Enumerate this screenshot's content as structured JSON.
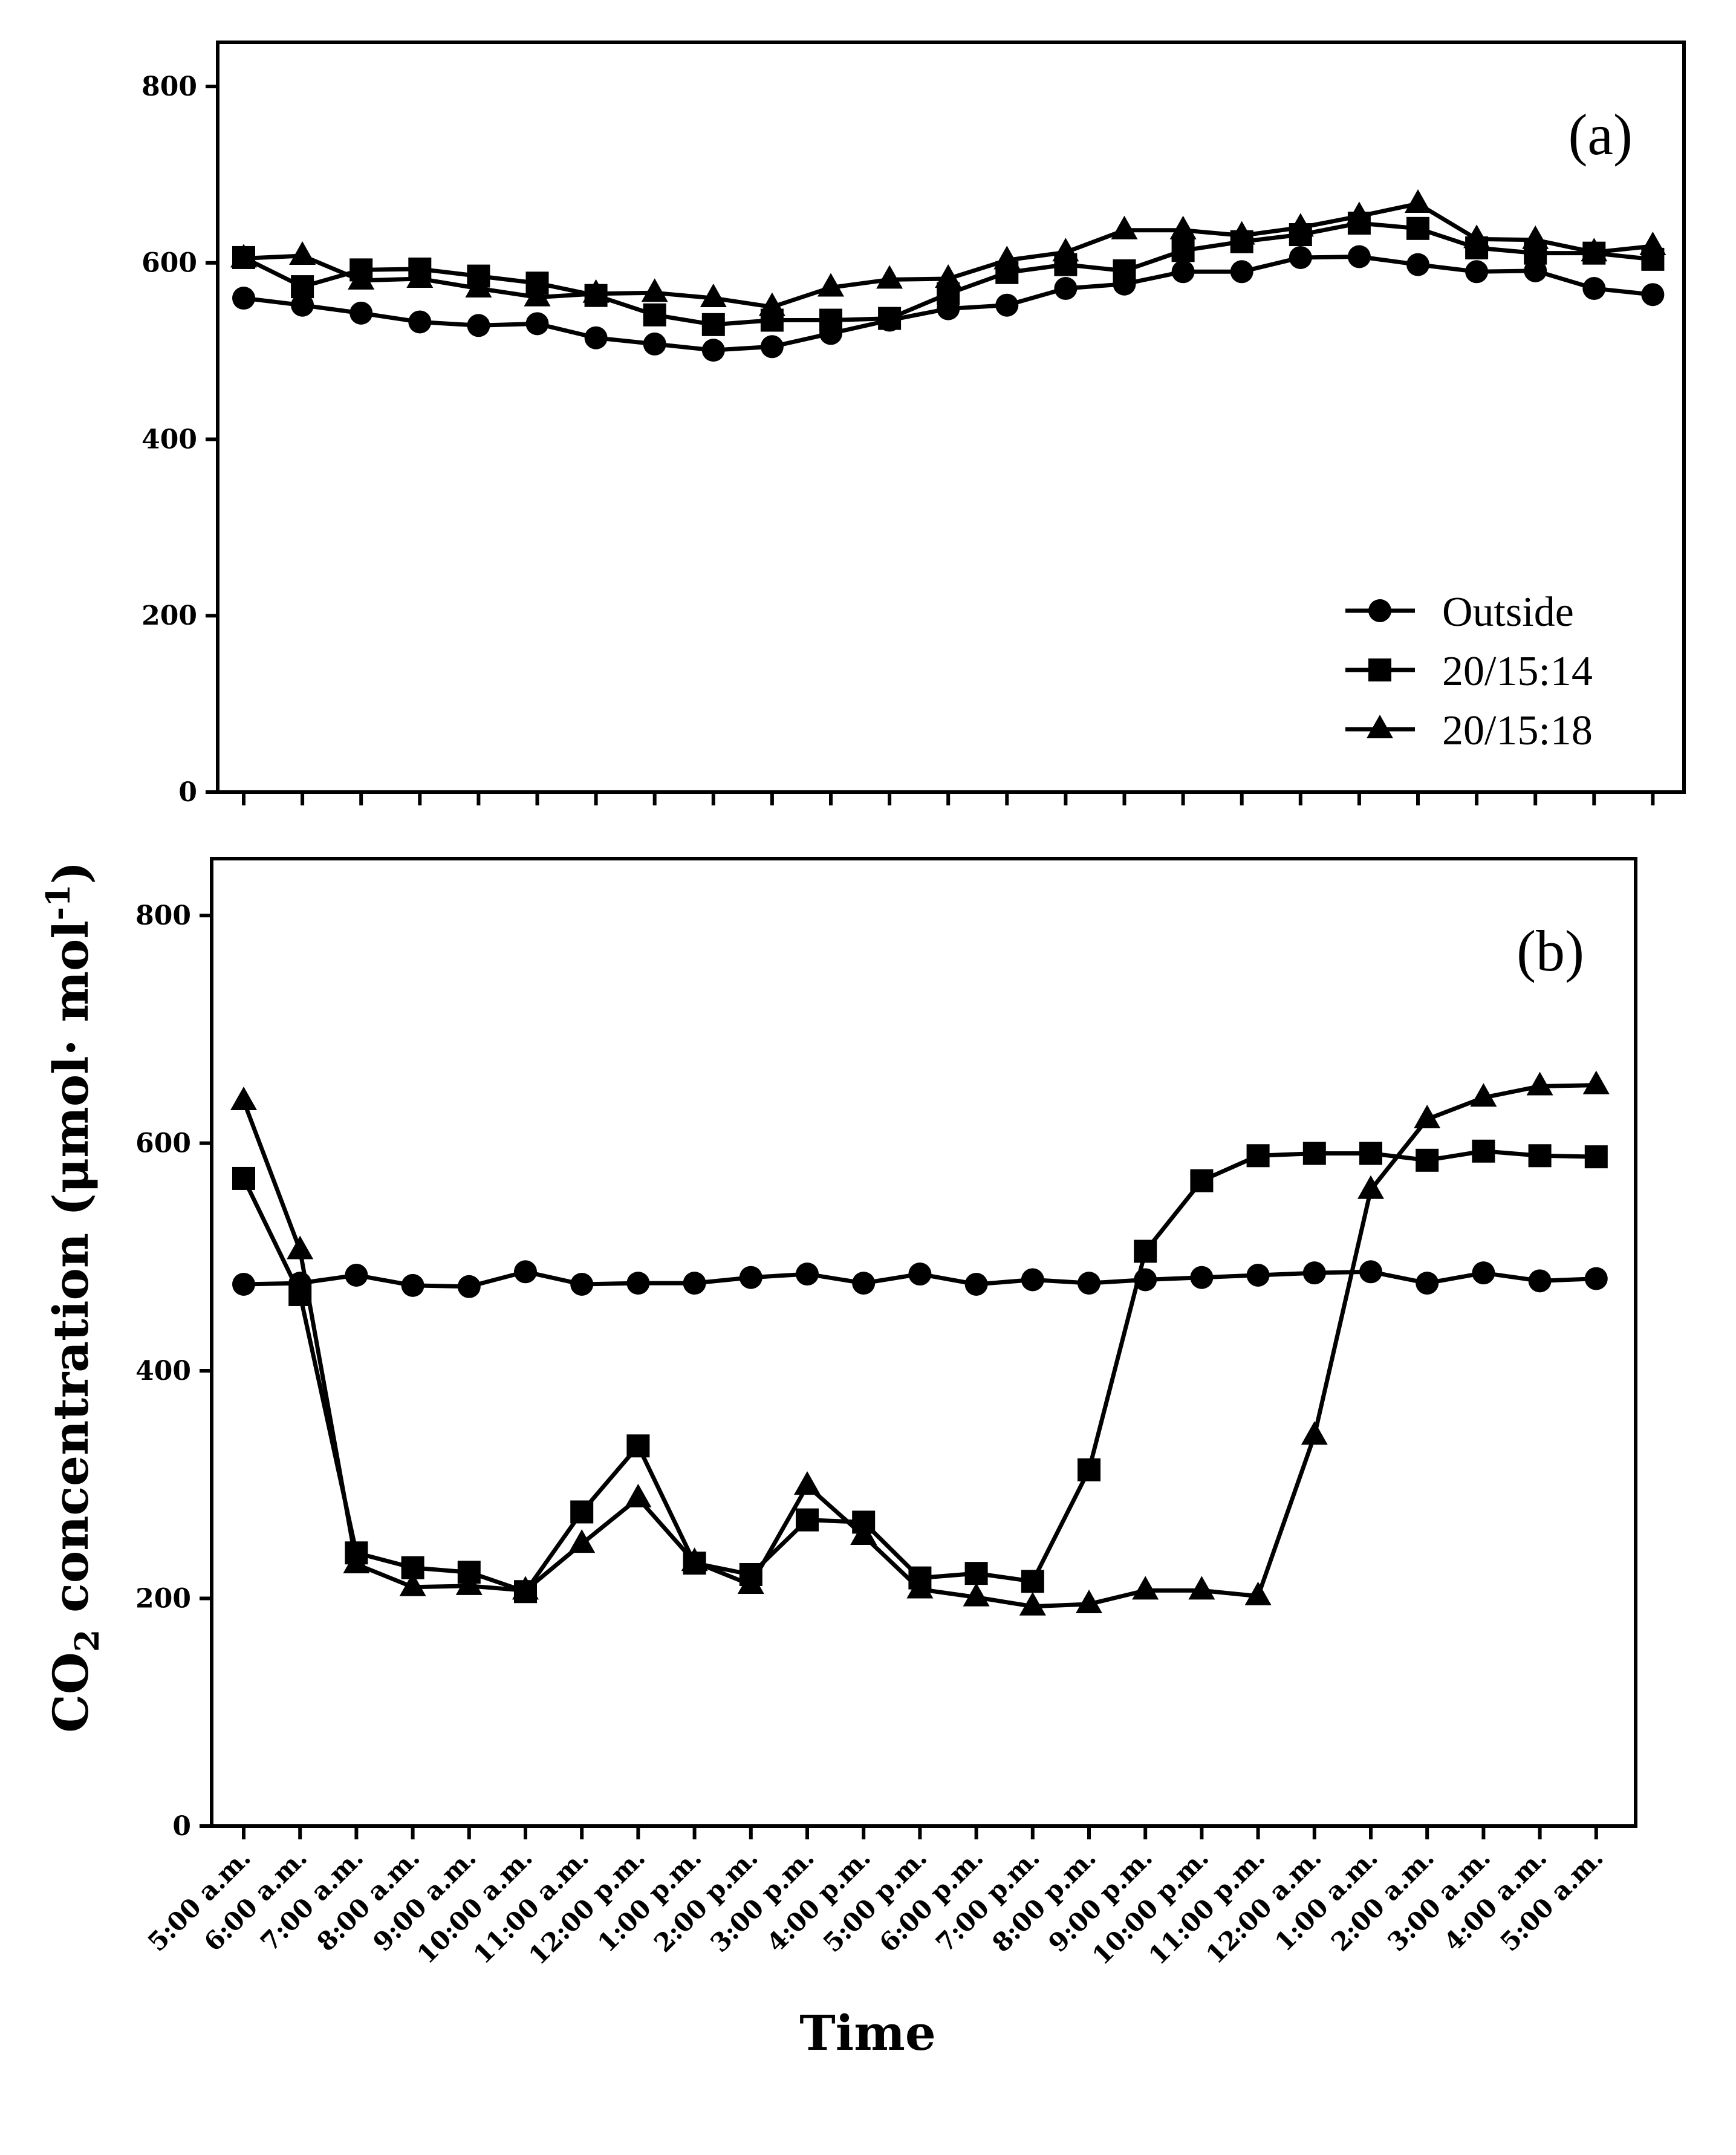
{
  "chart_data": [
    {
      "type": "line",
      "panel_label": "(a)",
      "categories": [
        "5:00 a.m.",
        "6:00 a.m.",
        "7:00 a.m.",
        "8:00 a.m.",
        "9:00 a.m.",
        "10:00 a.m.",
        "11:00 a.m.",
        "12:00 p.m.",
        "1:00 p.m.",
        "2:00 p.m.",
        "3:00 p.m.",
        "4:00 p.m.",
        "5:00 p.m.",
        "6:00 p.m.",
        "7:00 p.m.",
        "8:00 p.m.",
        "9:00 p.m.",
        "10:00 p.m.",
        "11:00 p.m.",
        "12:00 a.m.",
        "1:00 a.m.",
        "2:00 a.m.",
        "3:00 a.m.",
        "4:00 a.m.",
        "5:00 a.m."
      ],
      "series": [
        {
          "name": "Outside",
          "marker": "circle",
          "values": [
            560,
            552,
            543,
            533,
            529,
            531,
            515,
            508,
            501,
            505,
            520,
            535,
            548,
            552,
            571,
            576,
            590,
            590,
            606,
            607,
            598,
            590,
            591,
            571,
            564
          ]
        },
        {
          "name": "20/15:14",
          "marker": "square",
          "values": [
            606,
            573,
            592,
            593,
            585,
            577,
            563,
            541,
            530,
            535,
            535,
            537,
            565,
            589,
            598,
            591,
            614,
            624,
            632,
            645,
            639,
            617,
            611,
            611,
            604
          ]
        },
        {
          "name": "20/15:18",
          "marker": "triangle",
          "values": [
            605,
            608,
            580,
            582,
            571,
            561,
            565,
            566,
            560,
            550,
            572,
            581,
            582,
            603,
            612,
            637,
            637,
            631,
            640,
            653,
            667,
            627,
            626,
            612,
            619
          ]
        }
      ],
      "ylim": [
        0,
        850
      ],
      "yticks": [
        0,
        200,
        400,
        600,
        800
      ],
      "legend_position": "bottom-right",
      "xlabel": "",
      "ylabel": ""
    },
    {
      "type": "line",
      "panel_label": "(b)",
      "categories": [
        "5:00 a.m.",
        "6:00 a.m.",
        "7:00 a.m.",
        "8:00 a.m.",
        "9:00 a.m.",
        "10:00 a.m.",
        "11:00 a.m.",
        "12:00 p.m.",
        "1:00 p.m.",
        "2:00 p.m.",
        "3:00 p.m.",
        "4:00 p.m.",
        "5:00 p.m.",
        "6:00 p.m.",
        "7:00 p.m.",
        "8:00 p.m.",
        "9:00 p.m.",
        "10:00 p.m.",
        "11:00 p.m.",
        "12:00 a.m.",
        "1:00 a.m.",
        "2:00 a.m.",
        "3:00 a.m.",
        "4:00 a.m.",
        "5:00 a.m."
      ],
      "series": [
        {
          "name": "Outside",
          "marker": "circle",
          "values": [
            476,
            477,
            484,
            475,
            474,
            487,
            476,
            477,
            477,
            482,
            485,
            477,
            485,
            476,
            480,
            477,
            480,
            482,
            484,
            486,
            487,
            477,
            486,
            479,
            481
          ]
        },
        {
          "name": "20/15:14",
          "marker": "square",
          "values": [
            569,
            467,
            240,
            227,
            223,
            206,
            276,
            334,
            231,
            221,
            269,
            267,
            218,
            222,
            215,
            313,
            505,
            567,
            589,
            591,
            591,
            585,
            593,
            589,
            588
          ]
        },
        {
          "name": "20/15:18",
          "marker": "triangle",
          "values": [
            637,
            506,
            230,
            210,
            211,
            207,
            248,
            288,
            232,
            212,
            299,
            255,
            208,
            201,
            193,
            195,
            207,
            207,
            202,
            343,
            559,
            621,
            640,
            650,
            651
          ]
        }
      ],
      "ylim": [
        0,
        850
      ],
      "yticks": [
        0,
        200,
        400,
        600,
        800
      ],
      "xlabel": "Time",
      "ylabel_main": "CO",
      "ylabel_sub": "2",
      "ylabel_mid": " concentration (μmol· mol",
      "ylabel_sup": "-1",
      "ylabel_end": ")"
    }
  ]
}
